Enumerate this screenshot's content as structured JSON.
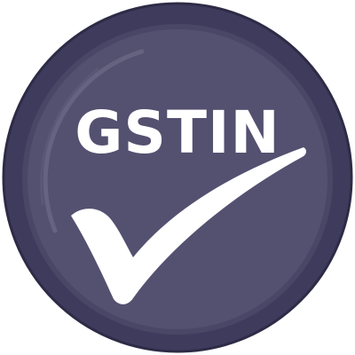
{
  "badge": {
    "label": "GSTIN",
    "colors": {
      "outer_ring": "#3f3b5d",
      "inner_disc": "#545070",
      "highlight": "#6a6685",
      "text": "#ffffff",
      "checkmark": "#ffffff"
    },
    "icon": "checkmark-icon"
  }
}
